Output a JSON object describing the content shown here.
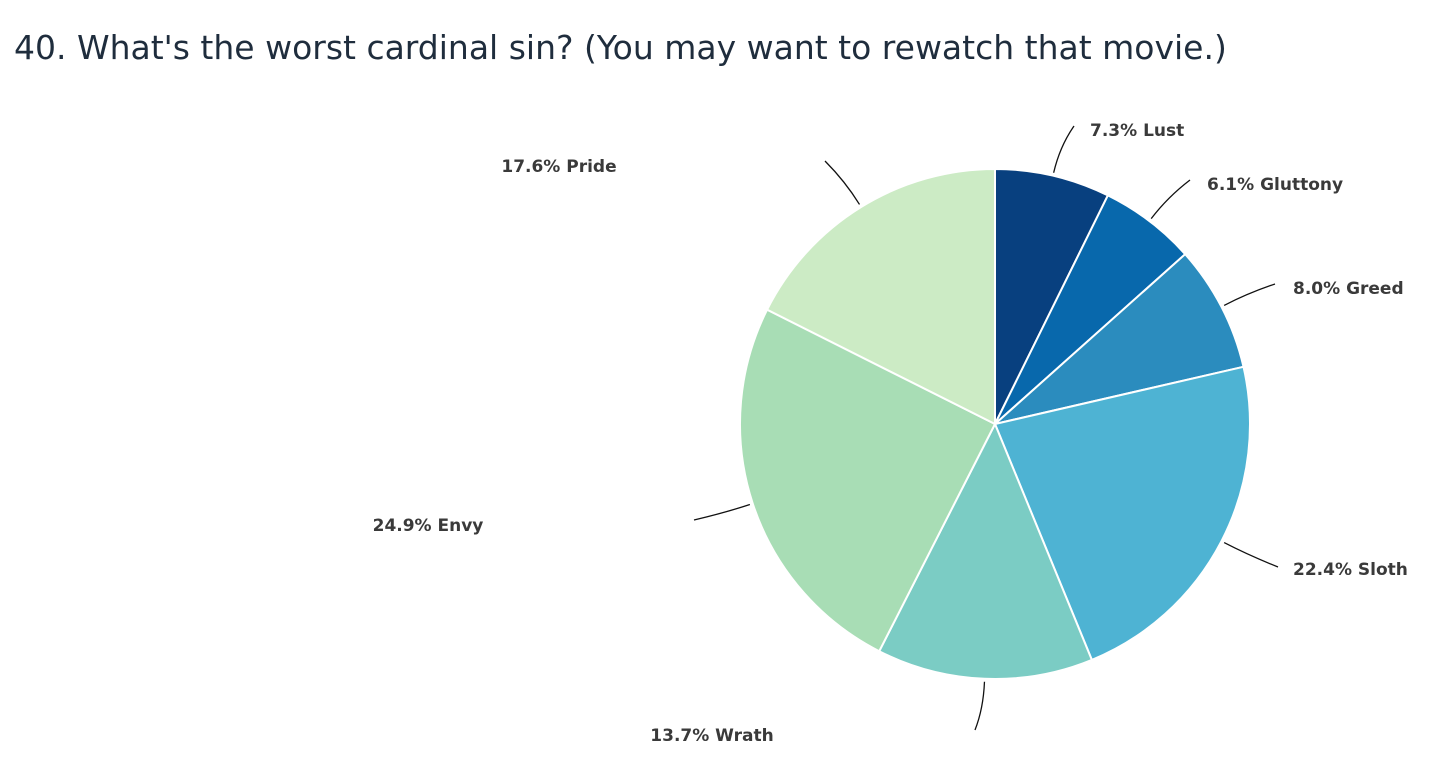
{
  "question": {
    "title": "40. What's the worst cardinal sin? (You may want to rewatch that movie.)"
  },
  "chart_data": {
    "type": "pie",
    "title": "",
    "start": "top, clockwise",
    "slices": [
      {
        "name": "Lust",
        "value": 7.3,
        "label": "7.3% Lust",
        "color": "#08407f"
      },
      {
        "name": "Gluttony",
        "value": 6.1,
        "label": "6.1% Gluttony",
        "color": "#0868ac"
      },
      {
        "name": "Greed",
        "value": 8.0,
        "label": "8.0% Greed",
        "color": "#2b8cbe"
      },
      {
        "name": "Sloth",
        "value": 22.4,
        "label": "22.4% Sloth",
        "color": "#4eb3d3"
      },
      {
        "name": "Wrath",
        "value": 13.7,
        "label": "13.7% Wrath",
        "color": "#7bccc4"
      },
      {
        "name": "Envy",
        "value": 24.9,
        "label": "24.9% Envy",
        "color": "#a8ddb5"
      },
      {
        "name": "Pride",
        "value": 17.6,
        "label": "17.6% Pride",
        "color": "#ccebc5"
      }
    ]
  }
}
